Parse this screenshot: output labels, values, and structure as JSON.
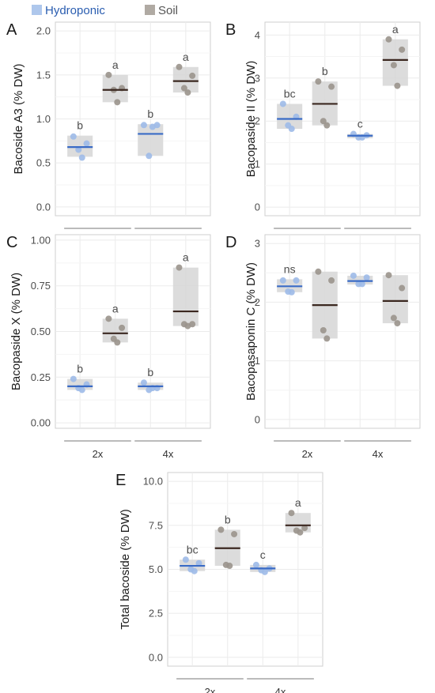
{
  "legend": {
    "items": [
      {
        "label": "Hydroponic",
        "color": "#aec7ec",
        "text_color": "#2a5db0"
      },
      {
        "label": "Soil",
        "color": "#b0aaa3",
        "text_color": "#555555"
      }
    ]
  },
  "colors": {
    "hydro_point": "#9dbae8",
    "soil_point": "#9a938c",
    "box_fill": "#d6d6d6",
    "hydro_median": "#3a6bc6",
    "soil_median": "#3b2820",
    "grid": "#ebebeb",
    "panel_border": "#cfcfcf"
  },
  "chart_data": [
    {
      "type": "box",
      "panel": "A",
      "ylabel": "Bacoside A3 (% DW)",
      "ylim": [
        -0.1,
        2.1
      ],
      "yticks": [
        0.0,
        0.5,
        1.0,
        1.5,
        2.0
      ],
      "ytick_labels": [
        "0.0",
        "0.5",
        "1.0",
        "1.5",
        "2.0"
      ],
      "groups": [
        "2x",
        "4x"
      ],
      "series_order": [
        "Hydroponic",
        "Soil",
        "Hydroponic",
        "Soil"
      ],
      "boxes": [
        {
          "group": "2x",
          "treatment": "Hydroponic",
          "median": 0.68,
          "q1": 0.57,
          "q3": 0.81,
          "points": [
            0.8,
            0.65,
            0.56,
            0.72
          ],
          "sig": "b"
        },
        {
          "group": "2x",
          "treatment": "Soil",
          "median": 1.33,
          "q1": 1.19,
          "q3": 1.5,
          "points": [
            1.5,
            1.33,
            1.19,
            1.35
          ],
          "sig": "a"
        },
        {
          "group": "4x",
          "treatment": "Hydroponic",
          "median": 0.83,
          "q1": 0.58,
          "q3": 0.94,
          "points": [
            0.93,
            0.58,
            0.91,
            0.93
          ],
          "sig": "b"
        },
        {
          "group": "4x",
          "treatment": "Soil",
          "median": 1.43,
          "q1": 1.3,
          "q3": 1.59,
          "points": [
            1.59,
            1.35,
            1.3,
            1.49
          ],
          "sig": "a"
        }
      ]
    },
    {
      "type": "box",
      "panel": "B",
      "ylabel": "Bacopaside II (% DW)",
      "ylim": [
        -0.2,
        4.3
      ],
      "yticks": [
        0,
        1,
        2,
        3,
        4
      ],
      "ytick_labels": [
        "0",
        "1",
        "2",
        "3",
        "4"
      ],
      "groups": [
        "2x",
        "4x"
      ],
      "series_order": [
        "Hydroponic",
        "Soil",
        "Hydroponic",
        "Soil"
      ],
      "boxes": [
        {
          "group": "2x",
          "treatment": "Hydroponic",
          "median": 2.05,
          "q1": 1.82,
          "q3": 2.4,
          "points": [
            2.4,
            1.9,
            1.82,
            2.1
          ],
          "sig": "bc"
        },
        {
          "group": "2x",
          "treatment": "Soil",
          "median": 2.4,
          "q1": 1.9,
          "q3": 2.92,
          "points": [
            2.92,
            2.0,
            1.9,
            2.8
          ],
          "sig": "b"
        },
        {
          "group": "4x",
          "treatment": "Hydroponic",
          "median": 1.66,
          "q1": 1.6,
          "q3": 1.7,
          "points": [
            1.7,
            1.62,
            1.62,
            1.67
          ],
          "sig": "c"
        },
        {
          "group": "4x",
          "treatment": "Soil",
          "median": 3.42,
          "q1": 2.82,
          "q3": 3.9,
          "points": [
            3.9,
            3.3,
            2.82,
            3.66
          ],
          "sig": "a"
        }
      ]
    },
    {
      "type": "box",
      "panel": "C",
      "ylabel": "Bacopaside X (% DW)",
      "ylim": [
        -0.03,
        1.03
      ],
      "yticks": [
        0.0,
        0.25,
        0.5,
        0.75,
        1.0
      ],
      "ytick_labels": [
        "0.00",
        "0.25",
        "0.50",
        "0.75",
        "1.00"
      ],
      "groups": [
        "2x",
        "4x"
      ],
      "series_order": [
        "Hydroponic",
        "Soil",
        "Hydroponic",
        "Soil"
      ],
      "boxes": [
        {
          "group": "2x",
          "treatment": "Hydroponic",
          "median": 0.2,
          "q1": 0.18,
          "q3": 0.24,
          "points": [
            0.24,
            0.19,
            0.18,
            0.21
          ],
          "sig": "b"
        },
        {
          "group": "2x",
          "treatment": "Soil",
          "median": 0.49,
          "q1": 0.44,
          "q3": 0.57,
          "points": [
            0.57,
            0.46,
            0.44,
            0.52
          ],
          "sig": "a"
        },
        {
          "group": "4x",
          "treatment": "Hydroponic",
          "median": 0.2,
          "q1": 0.18,
          "q3": 0.22,
          "points": [
            0.22,
            0.18,
            0.19,
            0.19
          ],
          "sig": "b"
        },
        {
          "group": "4x",
          "treatment": "Soil",
          "median": 0.61,
          "q1": 0.53,
          "q3": 0.85,
          "points": [
            0.85,
            0.54,
            0.53,
            0.54
          ],
          "sig": "a"
        }
      ]
    },
    {
      "type": "box",
      "panel": "D",
      "ylabel": "Bacopasaponin C (% DW)",
      "ylim": [
        -0.15,
        3.15
      ],
      "yticks": [
        0,
        1,
        2,
        3
      ],
      "ytick_labels": [
        "0",
        "1",
        "2",
        "3"
      ],
      "groups": [
        "2x",
        "4x"
      ],
      "series_order": [
        "Hydroponic",
        "Soil",
        "Hydroponic",
        "Soil"
      ],
      "boxes": [
        {
          "group": "2x",
          "treatment": "Hydroponic",
          "median": 2.27,
          "q1": 2.17,
          "q3": 2.39,
          "points": [
            2.37,
            2.18,
            2.17,
            2.37
          ],
          "sig": "ns"
        },
        {
          "group": "2x",
          "treatment": "Soil",
          "median": 1.95,
          "q1": 1.38,
          "q3": 2.52,
          "points": [
            2.52,
            1.52,
            1.38,
            2.37
          ],
          "sig": ""
        },
        {
          "group": "4x",
          "treatment": "Hydroponic",
          "median": 2.36,
          "q1": 2.3,
          "q3": 2.45,
          "points": [
            2.45,
            2.31,
            2.31,
            2.42
          ],
          "sig": ""
        },
        {
          "group": "4x",
          "treatment": "Soil",
          "median": 2.02,
          "q1": 1.64,
          "q3": 2.46,
          "points": [
            2.46,
            1.73,
            1.64,
            2.24
          ],
          "sig": ""
        }
      ]
    },
    {
      "type": "box",
      "panel": "E",
      "ylabel": "Total bacoside (% DW)",
      "ylim": [
        -0.5,
        10.5
      ],
      "yticks": [
        0.0,
        2.5,
        5.0,
        7.5,
        10.0
      ],
      "ytick_labels": [
        "0.0",
        "2.5",
        "5.0",
        "7.5",
        "10.0"
      ],
      "groups": [
        "2x",
        "4x"
      ],
      "series_order": [
        "Hydroponic",
        "Soil",
        "Hydroponic",
        "Soil"
      ],
      "boxes": [
        {
          "group": "2x",
          "treatment": "Hydroponic",
          "median": 5.2,
          "q1": 4.9,
          "q3": 5.55,
          "points": [
            5.55,
            5.0,
            4.9,
            5.35
          ],
          "sig": "bc"
        },
        {
          "group": "2x",
          "treatment": "Soil",
          "median": 6.2,
          "q1": 5.2,
          "q3": 7.25,
          "points": [
            7.25,
            5.25,
            5.2,
            7.0
          ],
          "sig": "b"
        },
        {
          "group": "4x",
          "treatment": "Hydroponic",
          "median": 5.05,
          "q1": 4.85,
          "q3": 5.25,
          "points": [
            5.25,
            4.95,
            4.85,
            5.05
          ],
          "sig": "c"
        },
        {
          "group": "4x",
          "treatment": "Soil",
          "median": 7.5,
          "q1": 7.1,
          "q3": 8.2,
          "points": [
            8.2,
            7.2,
            7.1,
            7.35
          ],
          "sig": "a"
        }
      ]
    }
  ]
}
